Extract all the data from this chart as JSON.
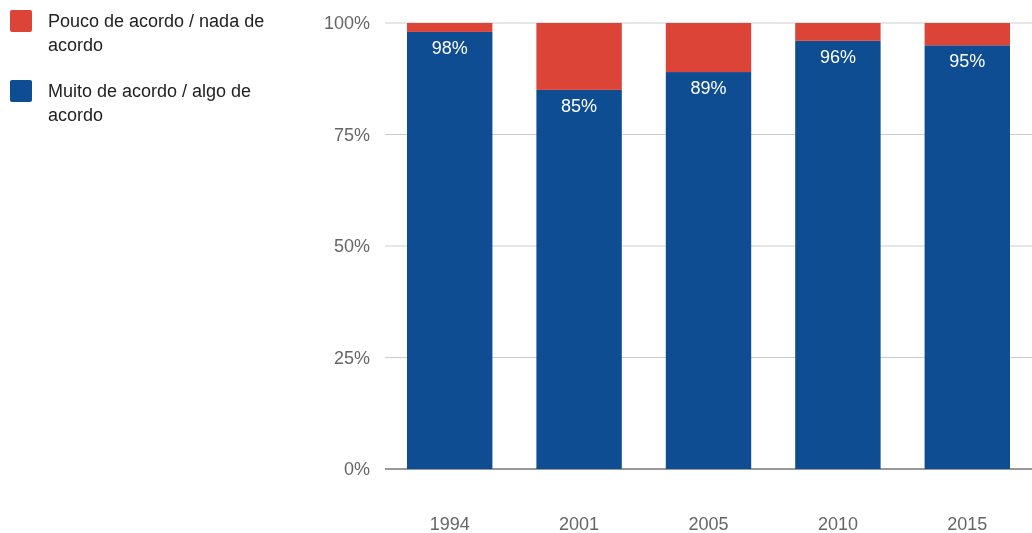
{
  "chart_data": {
    "type": "bar",
    "stacked": true,
    "categories": [
      "1994",
      "2001",
      "2005",
      "2010",
      "2015"
    ],
    "series": [
      {
        "name": "Muito de acordo / algo de acordo",
        "color": "#0e4d92",
        "values": [
          98,
          85,
          89,
          96,
          95
        ],
        "value_labels": [
          "98%",
          "85%",
          "89%",
          "96%",
          "95%"
        ]
      },
      {
        "name": "Pouco de acordo / nada de acordo",
        "color": "#db4437",
        "values": [
          2,
          15,
          11,
          4,
          5
        ]
      }
    ],
    "ylim": [
      0,
      100
    ],
    "yticks": [
      {
        "value": 0,
        "label": "0%"
      },
      {
        "value": 25,
        "label": "25%"
      },
      {
        "value": 50,
        "label": "50%"
      },
      {
        "value": 75,
        "label": "75%"
      },
      {
        "value": 100,
        "label": "100%"
      }
    ],
    "grid": "y",
    "legend": "top left"
  }
}
